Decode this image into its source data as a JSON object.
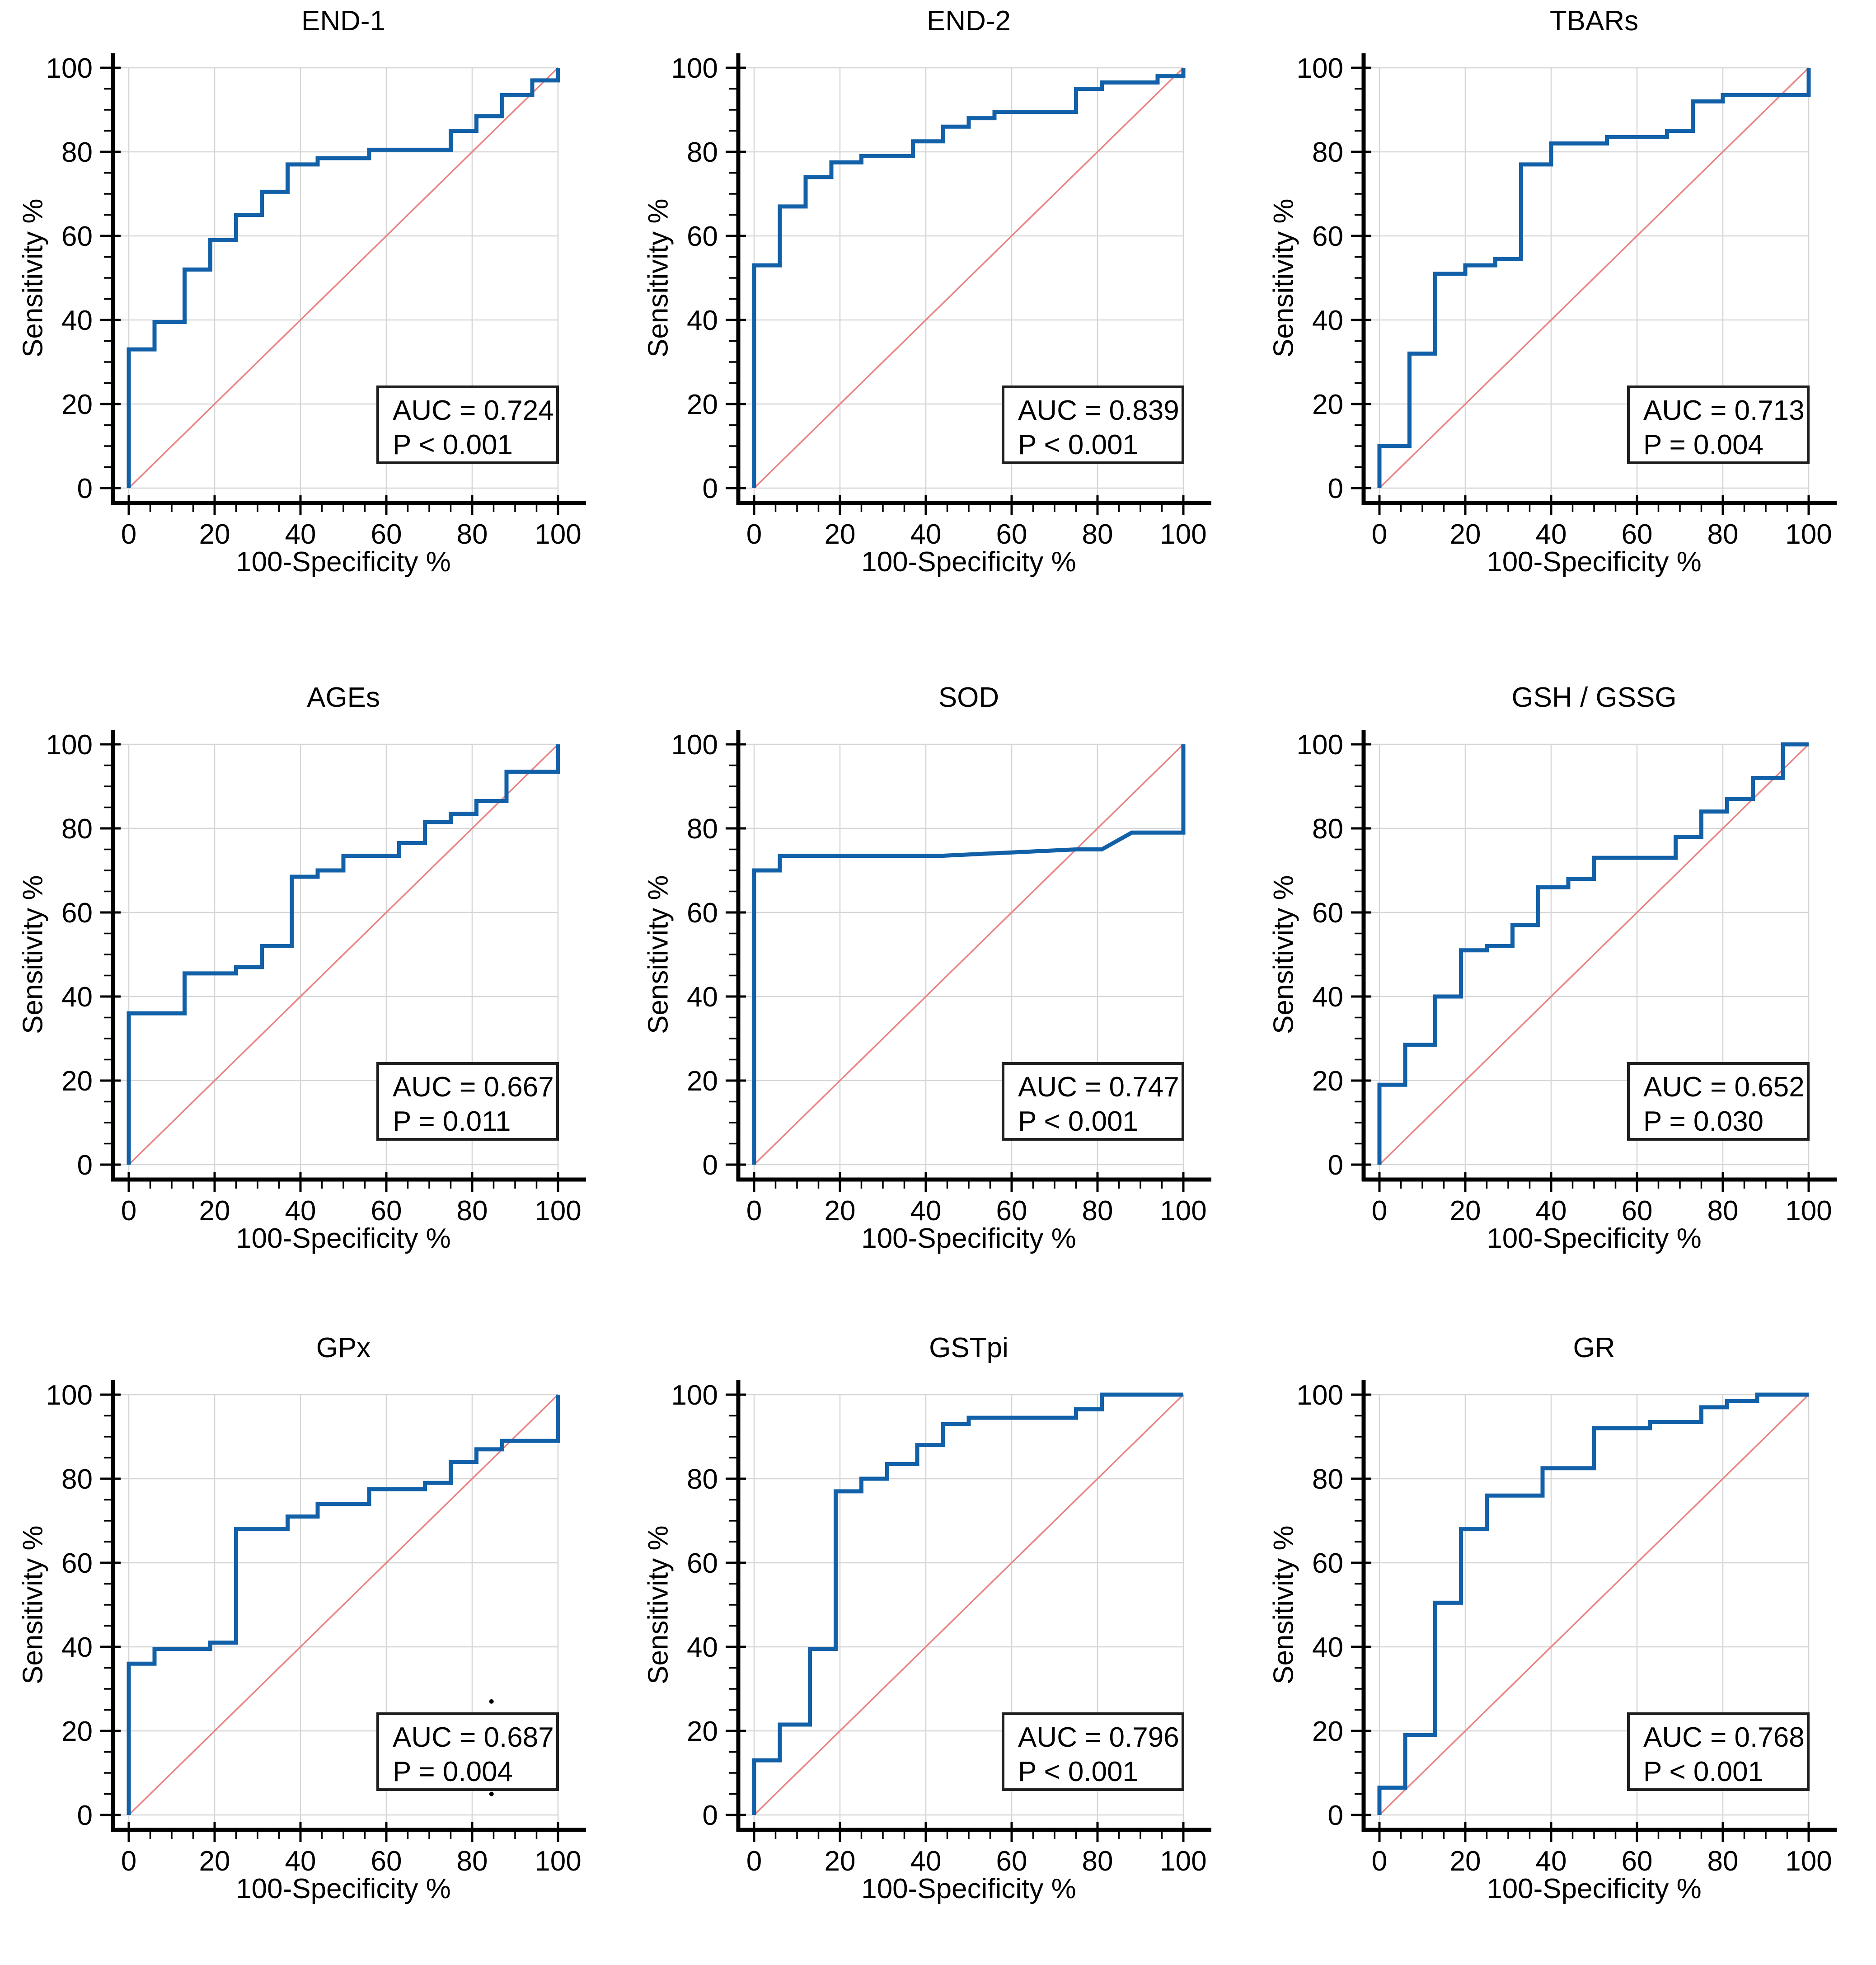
{
  "figure": {
    "kind": "roc-curve-panel-grid",
    "rows": 3,
    "cols": 3
  },
  "palette": {
    "curve_blue": "#1160a8",
    "reference_pink": "#e98585",
    "gridline_gray": "#d6d6d6",
    "axis_black": "#000000",
    "annotation_border": "#1f1f1f"
  },
  "chart_data": [
    {
      "type": "line",
      "subtype": "roc-step-curve",
      "title": "END-1",
      "xlabel": "100-Specificity %",
      "ylabel": "Sensitivity %",
      "xlim": [
        0,
        100
      ],
      "ylim": [
        0,
        100
      ],
      "ticks": [
        0,
        20,
        40,
        60,
        80,
        100
      ],
      "minor_tick_step": 5,
      "grid": true,
      "annotation": {
        "auc": "AUC = 0.724",
        "p": "P < 0.001"
      },
      "reference_line": {
        "x": [
          0,
          100
        ],
        "y": [
          0,
          100
        ]
      },
      "roc_points": [
        [
          0,
          0
        ],
        [
          0,
          33
        ],
        [
          6,
          33
        ],
        [
          6,
          39.5
        ],
        [
          13,
          39.5
        ],
        [
          13,
          52
        ],
        [
          19,
          52
        ],
        [
          19,
          59
        ],
        [
          25,
          59
        ],
        [
          25,
          65
        ],
        [
          31,
          65
        ],
        [
          31,
          70.5
        ],
        [
          37,
          70.5
        ],
        [
          37,
          77
        ],
        [
          44,
          77
        ],
        [
          44,
          78.5
        ],
        [
          56,
          78.5
        ],
        [
          56,
          80.5
        ],
        [
          75,
          80.5
        ],
        [
          75,
          85
        ],
        [
          81,
          85
        ],
        [
          81,
          88.5
        ],
        [
          87,
          88.5
        ],
        [
          87,
          93.5
        ],
        [
          94,
          93.5
        ],
        [
          94,
          97
        ],
        [
          100,
          97
        ],
        [
          100,
          100
        ]
      ]
    },
    {
      "type": "line",
      "subtype": "roc-step-curve",
      "title": "END-2",
      "xlabel": "100-Specificity %",
      "ylabel": "Sensitivity %",
      "xlim": [
        0,
        100
      ],
      "ylim": [
        0,
        100
      ],
      "ticks": [
        0,
        20,
        40,
        60,
        80,
        100
      ],
      "minor_tick_step": 5,
      "grid": true,
      "annotation": {
        "auc": "AUC = 0.839",
        "p": "P < 0.001"
      },
      "reference_line": {
        "x": [
          0,
          100
        ],
        "y": [
          0,
          100
        ]
      },
      "roc_points": [
        [
          0,
          0
        ],
        [
          0,
          53
        ],
        [
          6,
          53
        ],
        [
          6,
          67
        ],
        [
          12,
          67
        ],
        [
          12,
          74
        ],
        [
          18,
          74
        ],
        [
          18,
          77.5
        ],
        [
          25,
          77.5
        ],
        [
          25,
          79
        ],
        [
          37,
          79
        ],
        [
          37,
          82.5
        ],
        [
          44,
          82.5
        ],
        [
          44,
          86
        ],
        [
          50,
          86
        ],
        [
          50,
          88
        ],
        [
          56,
          88
        ],
        [
          56,
          89.5
        ],
        [
          75,
          89.5
        ],
        [
          75,
          95
        ],
        [
          81,
          95
        ],
        [
          81,
          96.5
        ],
        [
          94,
          96.5
        ],
        [
          94,
          98
        ],
        [
          100,
          98
        ],
        [
          100,
          100
        ]
      ]
    },
    {
      "type": "line",
      "subtype": "roc-step-curve",
      "title": "TBARs",
      "xlabel": "100-Specificity %",
      "ylabel": "Sensitivity %",
      "xlim": [
        0,
        100
      ],
      "ylim": [
        0,
        100
      ],
      "ticks": [
        0,
        20,
        40,
        60,
        80,
        100
      ],
      "minor_tick_step": 5,
      "grid": true,
      "annotation": {
        "auc": "AUC = 0.713",
        "p": "P = 0.004"
      },
      "reference_line": {
        "x": [
          0,
          100
        ],
        "y": [
          0,
          100
        ]
      },
      "roc_points": [
        [
          0,
          0
        ],
        [
          0,
          10
        ],
        [
          7,
          10
        ],
        [
          7,
          32
        ],
        [
          13,
          32
        ],
        [
          13,
          51
        ],
        [
          20,
          51
        ],
        [
          20,
          53
        ],
        [
          27,
          53
        ],
        [
          27,
          54.5
        ],
        [
          33,
          54.5
        ],
        [
          33,
          77
        ],
        [
          40,
          77
        ],
        [
          40,
          82
        ],
        [
          53,
          82
        ],
        [
          53,
          83.5
        ],
        [
          67,
          83.5
        ],
        [
          67,
          85
        ],
        [
          73,
          85
        ],
        [
          73,
          92
        ],
        [
          80,
          92
        ],
        [
          80,
          93.5
        ],
        [
          100,
          93.5
        ],
        [
          100,
          100
        ]
      ]
    },
    {
      "type": "line",
      "subtype": "roc-step-curve",
      "title": "AGEs",
      "xlabel": "100-Specificity %",
      "ylabel": "Sensitivity %",
      "xlim": [
        0,
        100
      ],
      "ylim": [
        0,
        100
      ],
      "ticks": [
        0,
        20,
        40,
        60,
        80,
        100
      ],
      "minor_tick_step": 5,
      "grid": true,
      "annotation": {
        "auc": "AUC = 0.667",
        "p": "P = 0.011"
      },
      "reference_line": {
        "x": [
          0,
          100
        ],
        "y": [
          0,
          100
        ]
      },
      "roc_points": [
        [
          0,
          0
        ],
        [
          0,
          36
        ],
        [
          13,
          36
        ],
        [
          13,
          45.5
        ],
        [
          25,
          45.5
        ],
        [
          25,
          47
        ],
        [
          31,
          47
        ],
        [
          31,
          52
        ],
        [
          38,
          52
        ],
        [
          38,
          68.5
        ],
        [
          44,
          68.5
        ],
        [
          44,
          70
        ],
        [
          50,
          70
        ],
        [
          50,
          73.5
        ],
        [
          63,
          73.5
        ],
        [
          63,
          76.5
        ],
        [
          69,
          76.5
        ],
        [
          69,
          81.5
        ],
        [
          75,
          81.5
        ],
        [
          75,
          83.5
        ],
        [
          81,
          83.5
        ],
        [
          81,
          86.5
        ],
        [
          88,
          86.5
        ],
        [
          88,
          93.5
        ],
        [
          100,
          93.5
        ],
        [
          100,
          100
        ]
      ]
    },
    {
      "type": "line",
      "subtype": "roc-step-curve",
      "title": "SOD",
      "xlabel": "100-Specificity %",
      "ylabel": "Sensitivity %",
      "xlim": [
        0,
        100
      ],
      "ylim": [
        0,
        100
      ],
      "ticks": [
        0,
        20,
        40,
        60,
        80,
        100
      ],
      "minor_tick_step": 5,
      "grid": true,
      "annotation": {
        "auc": "AUC = 0.747",
        "p": "P < 0.001"
      },
      "reference_line": {
        "x": [
          0,
          100
        ],
        "y": [
          0,
          100
        ]
      },
      "roc_points": [
        [
          0,
          0
        ],
        [
          0,
          70
        ],
        [
          6,
          70
        ],
        [
          6,
          73.5
        ],
        [
          44,
          73.5
        ],
        [
          75,
          75
        ],
        [
          81,
          75
        ],
        [
          88,
          79
        ],
        [
          100,
          79
        ],
        [
          100,
          100
        ]
      ]
    },
    {
      "type": "line",
      "subtype": "roc-step-curve",
      "title": "GSH / GSSG",
      "xlabel": "100-Specificity %",
      "ylabel": "Sensitivity %",
      "xlim": [
        0,
        100
      ],
      "ylim": [
        0,
        100
      ],
      "ticks": [
        0,
        20,
        40,
        60,
        80,
        100
      ],
      "minor_tick_step": 5,
      "grid": true,
      "annotation": {
        "auc": "AUC = 0.652",
        "p": "P = 0.030"
      },
      "reference_line": {
        "x": [
          0,
          100
        ],
        "y": [
          0,
          100
        ]
      },
      "roc_points": [
        [
          0,
          0
        ],
        [
          0,
          19
        ],
        [
          6,
          19
        ],
        [
          6,
          28.5
        ],
        [
          13,
          28.5
        ],
        [
          13,
          40
        ],
        [
          19,
          40
        ],
        [
          19,
          51
        ],
        [
          25,
          51
        ],
        [
          25,
          52
        ],
        [
          31,
          52
        ],
        [
          31,
          57
        ],
        [
          37,
          57
        ],
        [
          37,
          66
        ],
        [
          44,
          66
        ],
        [
          44,
          68
        ],
        [
          50,
          68
        ],
        [
          50,
          73
        ],
        [
          69,
          73
        ],
        [
          69,
          78
        ],
        [
          75,
          78
        ],
        [
          75,
          84
        ],
        [
          81,
          84
        ],
        [
          81,
          87
        ],
        [
          87,
          87
        ],
        [
          87,
          92
        ],
        [
          94,
          92
        ],
        [
          94,
          100
        ],
        [
          100,
          100
        ]
      ]
    },
    {
      "type": "line",
      "subtype": "roc-step-curve",
      "title": "GPx",
      "xlabel": "100-Specificity %",
      "ylabel": "Sensitivity %",
      "xlim": [
        0,
        100
      ],
      "ylim": [
        0,
        100
      ],
      "ticks": [
        0,
        20,
        40,
        60,
        80,
        100
      ],
      "minor_tick_step": 5,
      "grid": true,
      "annotation": {
        "auc": "AUC = 0.687",
        "p": "P = 0.004"
      },
      "reference_line": {
        "x": [
          0,
          100
        ],
        "y": [
          0,
          100
        ]
      },
      "artifact_dots": [
        [
          84.5,
          27
        ],
        [
          84.5,
          5
        ]
      ],
      "roc_points": [
        [
          0,
          0
        ],
        [
          0,
          36
        ],
        [
          6,
          36
        ],
        [
          6,
          39.5
        ],
        [
          19,
          39.5
        ],
        [
          19,
          41
        ],
        [
          25,
          41
        ],
        [
          25,
          68
        ],
        [
          37,
          68
        ],
        [
          37,
          71
        ],
        [
          44,
          71
        ],
        [
          44,
          74
        ],
        [
          56,
          74
        ],
        [
          56,
          77.5
        ],
        [
          69,
          77.5
        ],
        [
          69,
          79
        ],
        [
          75,
          79
        ],
        [
          75,
          84
        ],
        [
          81,
          84
        ],
        [
          81,
          87
        ],
        [
          87,
          87
        ],
        [
          87,
          89
        ],
        [
          100,
          89
        ],
        [
          100,
          100
        ]
      ]
    },
    {
      "type": "line",
      "subtype": "roc-step-curve",
      "title": "GSTpi",
      "xlabel": "100-Specificity %",
      "ylabel": "Sensitivity %",
      "xlim": [
        0,
        100
      ],
      "ylim": [
        0,
        100
      ],
      "ticks": [
        0,
        20,
        40,
        60,
        80,
        100
      ],
      "minor_tick_step": 5,
      "grid": true,
      "annotation": {
        "auc": "AUC = 0.796",
        "p": "P < 0.001"
      },
      "reference_line": {
        "x": [
          0,
          100
        ],
        "y": [
          0,
          100
        ]
      },
      "roc_points": [
        [
          0,
          0
        ],
        [
          0,
          13
        ],
        [
          6,
          13
        ],
        [
          6,
          21.5
        ],
        [
          13,
          21.5
        ],
        [
          13,
          39.5
        ],
        [
          19,
          39.5
        ],
        [
          19,
          77
        ],
        [
          25,
          77
        ],
        [
          25,
          80
        ],
        [
          31,
          80
        ],
        [
          31,
          83.5
        ],
        [
          38,
          83.5
        ],
        [
          38,
          88
        ],
        [
          44,
          88
        ],
        [
          44,
          93
        ],
        [
          50,
          93
        ],
        [
          50,
          94.5
        ],
        [
          75,
          94.5
        ],
        [
          75,
          96.5
        ],
        [
          81,
          96.5
        ],
        [
          81,
          100
        ],
        [
          100,
          100
        ]
      ]
    },
    {
      "type": "line",
      "subtype": "roc-step-curve",
      "title": "GR",
      "xlabel": "100-Specificity %",
      "ylabel": "Sensitivity %",
      "xlim": [
        0,
        100
      ],
      "ylim": [
        0,
        100
      ],
      "ticks": [
        0,
        20,
        40,
        60,
        80,
        100
      ],
      "minor_tick_step": 5,
      "grid": true,
      "annotation": {
        "auc": "AUC = 0.768",
        "p": "P < 0.001"
      },
      "reference_line": {
        "x": [
          0,
          100
        ],
        "y": [
          0,
          100
        ]
      },
      "roc_points": [
        [
          0,
          0
        ],
        [
          0,
          6.5
        ],
        [
          6,
          6.5
        ],
        [
          6,
          19
        ],
        [
          13,
          19
        ],
        [
          13,
          50.5
        ],
        [
          19,
          50.5
        ],
        [
          19,
          68
        ],
        [
          25,
          68
        ],
        [
          25,
          76
        ],
        [
          38,
          76
        ],
        [
          38,
          82.5
        ],
        [
          50,
          82.5
        ],
        [
          50,
          92
        ],
        [
          63,
          92
        ],
        [
          63,
          93.5
        ],
        [
          75,
          93.5
        ],
        [
          75,
          97
        ],
        [
          81,
          97
        ],
        [
          81,
          98.5
        ],
        [
          88,
          98.5
        ],
        [
          88,
          100
        ],
        [
          100,
          100
        ]
      ]
    }
  ]
}
